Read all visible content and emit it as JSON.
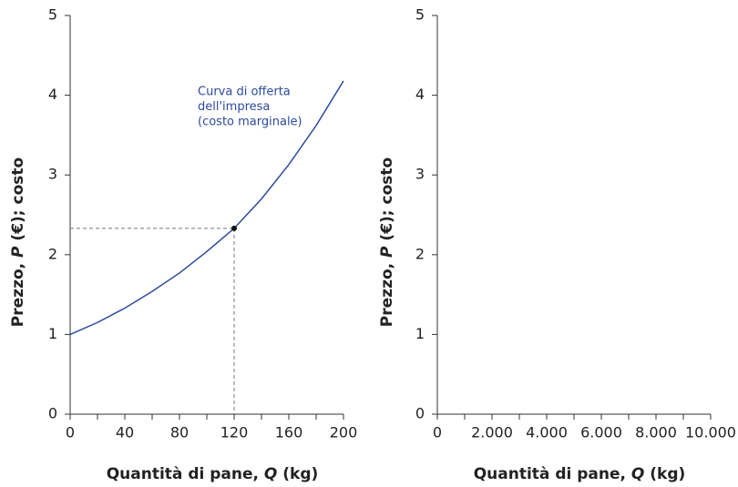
{
  "chart_data": [
    {
      "type": "line",
      "xlabel": [
        "Quantità di pane, ",
        "Q",
        " (kg)"
      ],
      "ylabel": [
        "Prezzo, ",
        "P",
        " (€); costo"
      ],
      "xlim": [
        0,
        200
      ],
      "ylim": [
        0,
        5
      ],
      "xticks": [
        0,
        40,
        80,
        120,
        160,
        200
      ],
      "xminor_ticks": [
        20,
        60,
        100,
        140,
        180
      ],
      "yticks": [
        0,
        1,
        2,
        3,
        4,
        5
      ],
      "series": [
        {
          "color": "#2c4a9c",
          "x": [
            0,
            20,
            40,
            60,
            80,
            100,
            120,
            140,
            160,
            180,
            200
          ],
          "values": [
            1,
            1.15,
            1.33,
            1.54,
            1.77,
            2.04,
            2.33,
            2.7,
            3.13,
            3.62,
            4.18
          ]
        }
      ],
      "point": {
        "x": 120,
        "y": 2.33
      },
      "annotation": [
        "Curva di offerta",
        "dell'impresa",
        "(costo marginale)"
      ]
    },
    {
      "type": "line",
      "xlabel": [
        "Quantità di pane, ",
        "Q",
        " (kg)"
      ],
      "ylabel": [
        "Prezzo, ",
        "P",
        " (€); costo"
      ],
      "xlim": [
        0,
        10000
      ],
      "ylim": [
        0,
        5
      ],
      "xticks": [
        0,
        {
          "value": 2000,
          "label": "2.000"
        },
        {
          "value": 4000,
          "label": "4.000"
        },
        {
          "value": 6000,
          "label": "6.000"
        },
        {
          "value": 8000,
          "label": "8.000"
        },
        {
          "value": 10000,
          "label": "10.000"
        }
      ],
      "xminor_ticks": [
        1000,
        3000,
        5000,
        7000,
        9000
      ],
      "yticks": [
        0,
        1,
        2,
        3,
        4,
        5
      ],
      "series": []
    }
  ]
}
